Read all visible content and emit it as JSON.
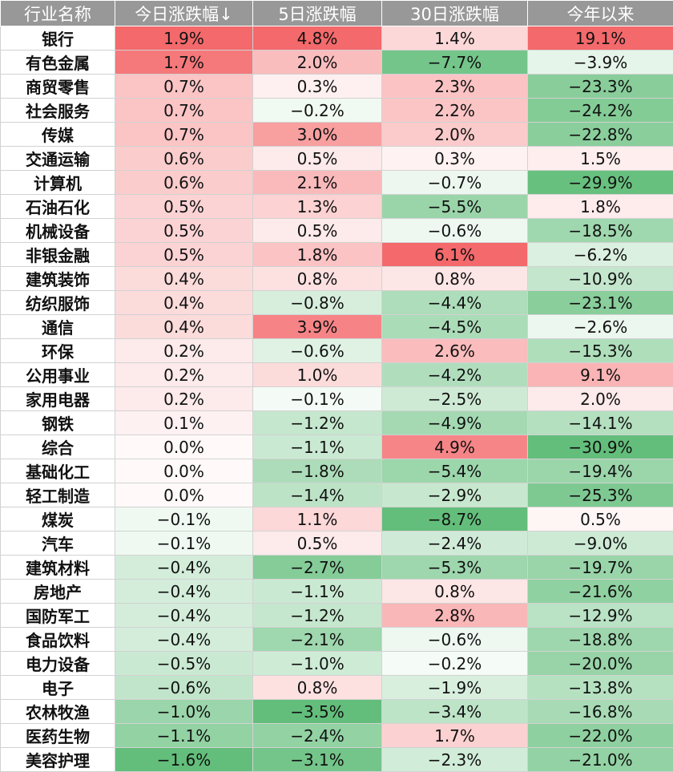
{
  "header": [
    "行业名称",
    "今日涨跌幅↓",
    "5日涨跌幅",
    "30日涨跌幅",
    "今年以来"
  ],
  "rows": [
    {
      "name": "银行",
      "vals": [
        "1.9%",
        "4.8%",
        "1.4%",
        "19.1%"
      ],
      "num": [
        1.9,
        4.8,
        1.4,
        19.1
      ]
    },
    {
      "name": "有色金属",
      "vals": [
        "1.7%",
        "2.0%",
        "−7.7%",
        "−3.9%"
      ],
      "num": [
        1.7,
        2.0,
        -7.7,
        -3.9
      ]
    },
    {
      "name": "商贸零售",
      "vals": [
        "0.7%",
        "0.3%",
        "2.3%",
        "−23.3%"
      ],
      "num": [
        0.7,
        0.3,
        2.3,
        -23.3
      ]
    },
    {
      "name": "社会服务",
      "vals": [
        "0.7%",
        "−0.2%",
        "2.2%",
        "−24.2%"
      ],
      "num": [
        0.7,
        -0.2,
        2.2,
        -24.2
      ]
    },
    {
      "name": "传媒",
      "vals": [
        "0.7%",
        "3.0%",
        "2.0%",
        "−22.8%"
      ],
      "num": [
        0.7,
        3.0,
        2.0,
        -22.8
      ]
    },
    {
      "name": "交通运输",
      "vals": [
        "0.6%",
        "0.5%",
        "0.3%",
        "1.5%"
      ],
      "num": [
        0.6,
        0.5,
        0.3,
        1.5
      ]
    },
    {
      "name": "计算机",
      "vals": [
        "0.6%",
        "2.1%",
        "−0.7%",
        "−29.9%"
      ],
      "num": [
        0.6,
        2.1,
        -0.7,
        -29.9
      ]
    },
    {
      "name": "石油石化",
      "vals": [
        "0.5%",
        "1.3%",
        "−5.5%",
        "1.8%"
      ],
      "num": [
        0.5,
        1.3,
        -5.5,
        1.8
      ]
    },
    {
      "name": "机械设备",
      "vals": [
        "0.5%",
        "0.5%",
        "−0.6%",
        "−18.5%"
      ],
      "num": [
        0.5,
        0.5,
        -0.6,
        -18.5
      ]
    },
    {
      "name": "非银金融",
      "vals": [
        "0.5%",
        "1.8%",
        "6.1%",
        "−6.2%"
      ],
      "num": [
        0.5,
        1.8,
        6.1,
        -6.2
      ]
    },
    {
      "name": "建筑装饰",
      "vals": [
        "0.4%",
        "0.8%",
        "0.8%",
        "−10.9%"
      ],
      "num": [
        0.4,
        0.8,
        0.8,
        -10.9
      ]
    },
    {
      "name": "纺织服饰",
      "vals": [
        "0.4%",
        "−0.8%",
        "−4.4%",
        "−23.1%"
      ],
      "num": [
        0.4,
        -0.8,
        -4.4,
        -23.1
      ]
    },
    {
      "name": "通信",
      "vals": [
        "0.4%",
        "3.9%",
        "−4.5%",
        "−2.6%"
      ],
      "num": [
        0.4,
        3.9,
        -4.5,
        -2.6
      ]
    },
    {
      "name": "环保",
      "vals": [
        "0.2%",
        "−0.6%",
        "2.6%",
        "−15.3%"
      ],
      "num": [
        0.2,
        -0.6,
        2.6,
        -15.3
      ]
    },
    {
      "name": "公用事业",
      "vals": [
        "0.2%",
        "1.0%",
        "−4.2%",
        "9.1%"
      ],
      "num": [
        0.2,
        1.0,
        -4.2,
        9.1
      ]
    },
    {
      "name": "家用电器",
      "vals": [
        "0.2%",
        "−0.1%",
        "−2.5%",
        "2.0%"
      ],
      "num": [
        0.2,
        -0.1,
        -2.5,
        2.0
      ]
    },
    {
      "name": "钢铁",
      "vals": [
        "0.1%",
        "−1.2%",
        "−4.9%",
        "−14.1%"
      ],
      "num": [
        0.1,
        -1.2,
        -4.9,
        -14.1
      ]
    },
    {
      "name": "综合",
      "vals": [
        "0.0%",
        "−1.1%",
        "4.9%",
        "−30.9%"
      ],
      "num": [
        0.0,
        -1.1,
        4.9,
        -30.9
      ]
    },
    {
      "name": "基础化工",
      "vals": [
        "0.0%",
        "−1.8%",
        "−5.4%",
        "−19.4%"
      ],
      "num": [
        0.0,
        -1.8,
        -5.4,
        -19.4
      ]
    },
    {
      "name": "轻工制造",
      "vals": [
        "0.0%",
        "−1.4%",
        "−2.9%",
        "−25.3%"
      ],
      "num": [
        0.0,
        -1.4,
        -2.9,
        -25.3
      ]
    },
    {
      "name": "煤炭",
      "vals": [
        "−0.1%",
        "1.1%",
        "−8.7%",
        "0.5%"
      ],
      "num": [
        -0.1,
        1.1,
        -8.7,
        0.5
      ]
    },
    {
      "name": "汽车",
      "vals": [
        "−0.1%",
        "0.5%",
        "−2.4%",
        "−9.0%"
      ],
      "num": [
        -0.1,
        0.5,
        -2.4,
        -9.0
      ]
    },
    {
      "name": "建筑材料",
      "vals": [
        "−0.4%",
        "−2.7%",
        "−5.3%",
        "−19.7%"
      ],
      "num": [
        -0.4,
        -2.7,
        -5.3,
        -19.7
      ]
    },
    {
      "name": "房地产",
      "vals": [
        "−0.4%",
        "−1.1%",
        "0.8%",
        "−21.6%"
      ],
      "num": [
        -0.4,
        -1.1,
        0.8,
        -21.6
      ]
    },
    {
      "name": "国防军工",
      "vals": [
        "−0.4%",
        "−1.2%",
        "2.8%",
        "−12.9%"
      ],
      "num": [
        -0.4,
        -1.2,
        2.8,
        -12.9
      ]
    },
    {
      "name": "食品饮料",
      "vals": [
        "−0.4%",
        "−2.1%",
        "−0.6%",
        "−18.8%"
      ],
      "num": [
        -0.4,
        -2.1,
        -0.6,
        -18.8
      ]
    },
    {
      "name": "电力设备",
      "vals": [
        "−0.5%",
        "−1.0%",
        "−0.2%",
        "−20.0%"
      ],
      "num": [
        -0.5,
        -1.0,
        -0.2,
        -20.0
      ]
    },
    {
      "name": "电子",
      "vals": [
        "−0.6%",
        "0.8%",
        "−1.9%",
        "−13.8%"
      ],
      "num": [
        -0.6,
        0.8,
        -1.9,
        -13.8
      ]
    },
    {
      "name": "农林牧渔",
      "vals": [
        "−1.0%",
        "−3.5%",
        "−3.4%",
        "−16.8%"
      ],
      "num": [
        -1.0,
        -3.5,
        -3.4,
        -16.8
      ]
    },
    {
      "name": "医药生物",
      "vals": [
        "−1.1%",
        "−2.4%",
        "1.7%",
        "−22.0%"
      ],
      "num": [
        -1.1,
        -2.4,
        1.7,
        -22.0
      ]
    },
    {
      "name": "美容护理",
      "vals": [
        "−1.6%",
        "−3.1%",
        "−2.3%",
        "−21.0%"
      ],
      "num": [
        -1.6,
        -3.1,
        -2.3,
        -21.0
      ]
    }
  ],
  "colors": {
    "header_bg": "#989898",
    "header_text": "#ffffff",
    "positive_max": "#f4696b",
    "negative_max": "#63be7b",
    "neutral": "#ffffff",
    "border": "#d2d2d2"
  }
}
